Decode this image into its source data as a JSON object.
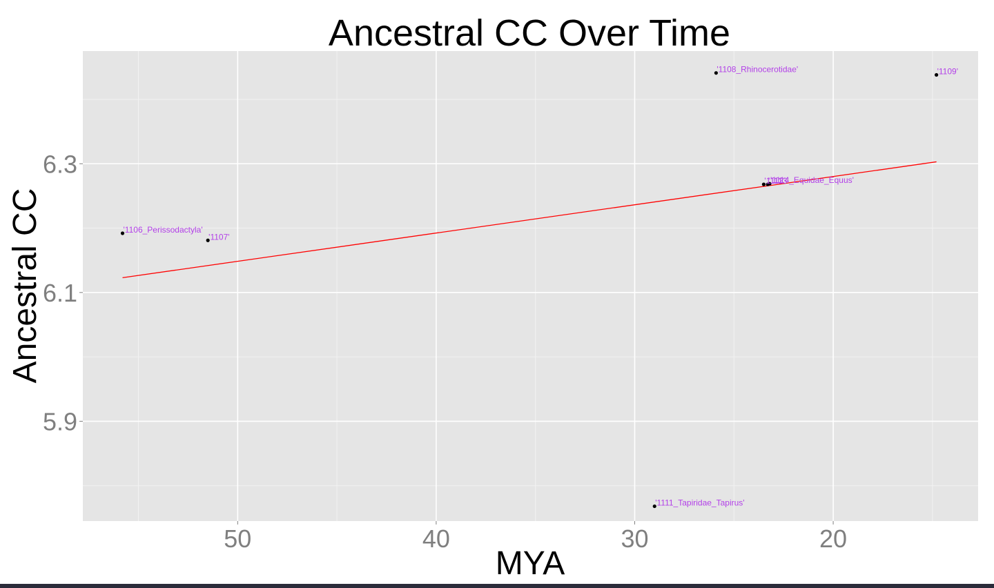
{
  "chart_data": {
    "type": "scatter",
    "title": "Ancestral CC Over Time",
    "xlabel": "MYA",
    "ylabel": "Ancestral CC",
    "x_reversed": true,
    "xlim": [
      57.8,
      12.7
    ],
    "ylim": [
      5.745,
      6.475
    ],
    "x_ticks": [
      50,
      40,
      30,
      20
    ],
    "x_tick_labels": [
      "50",
      "40",
      "30",
      "20"
    ],
    "x_minor_ticks": [
      55,
      45,
      35,
      25,
      15
    ],
    "y_ticks": [
      5.9,
      6.1,
      6.3
    ],
    "y_tick_labels": [
      "5.9",
      "6.1",
      "6.3"
    ],
    "y_minor_ticks": [
      5.8,
      6.0,
      6.2,
      6.4
    ],
    "grid": true,
    "panel_background": "#e5e5e5",
    "grid_color": "#ffffff",
    "point_color": "#000000",
    "label_color": "#b23fe8",
    "points": [
      {
        "x": 55.8,
        "y": 6.192,
        "label": "'1106_Perissodactyla'"
      },
      {
        "x": 51.5,
        "y": 6.181,
        "label": "'1107'"
      },
      {
        "x": 25.9,
        "y": 6.441,
        "label": "'1108_Rhinocerotidae'"
      },
      {
        "x": 14.8,
        "y": 6.438,
        "label": "'1109'"
      },
      {
        "x": 29.0,
        "y": 5.768,
        "label": "'1111_Tapiridae_Tapirus'"
      },
      {
        "x": 23.5,
        "y": 6.268,
        "label": "'1112'"
      },
      {
        "x": 23.3,
        "y": 6.268,
        "label": "'1113'"
      },
      {
        "x": 23.2,
        "y": 6.269,
        "label": "'1114_Equidae_Equus'"
      }
    ],
    "trend_line": {
      "color": "#ff0000",
      "x": [
        55.8,
        14.8
      ],
      "y": [
        6.123,
        6.303
      ]
    }
  }
}
